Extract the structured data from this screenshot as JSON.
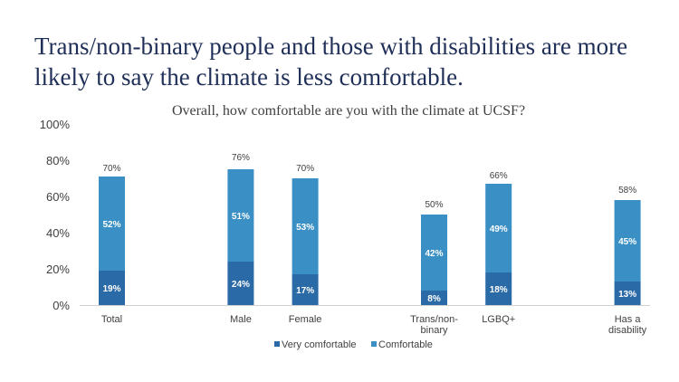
{
  "page": {
    "headline_line1": "Trans/non-binary people and those with disabilities are more",
    "headline_line2": "likely to say the climate is less comfortable."
  },
  "chart_data": {
    "type": "bar",
    "stacked": true,
    "title": "Overall, how comfortable are you with the climate at UCSF?",
    "xlabel": "",
    "ylabel": "",
    "ylim": [
      0,
      100
    ],
    "yticks": [
      "0%",
      "20%",
      "40%",
      "60%",
      "80%",
      "100%"
    ],
    "ytick_values": [
      0,
      20,
      40,
      60,
      80,
      100
    ],
    "grid": false,
    "legend_position": "bottom",
    "categories": [
      {
        "label": [
          "Total"
        ],
        "slot": 0
      },
      {
        "label": [
          "Male"
        ],
        "slot": 2
      },
      {
        "label": [
          "Female"
        ],
        "slot": 3
      },
      {
        "label": [
          "Trans/non-",
          "binary"
        ],
        "slot": 5
      },
      {
        "label": [
          "LGBQ+"
        ],
        "slot": 6
      },
      {
        "label": [
          "Has a",
          "disability"
        ],
        "slot": 8
      }
    ],
    "series": [
      {
        "name": "Very comfortable",
        "color": "#2a6aa6",
        "values": [
          19,
          24,
          17,
          8,
          18,
          13
        ],
        "labels": [
          "19%",
          "24%",
          "17%",
          "8%",
          "18%",
          "13%"
        ]
      },
      {
        "name": "Comfortable",
        "color": "#3a8fc4",
        "values": [
          52,
          51,
          53,
          42,
          49,
          45
        ],
        "labels": [
          "52%",
          "51%",
          "53%",
          "42%",
          "49%",
          "45%"
        ]
      }
    ],
    "totals": [
      70,
      76,
      70,
      50,
      66,
      58
    ],
    "total_labels": [
      "70%",
      "76%",
      "70%",
      "50%",
      "66%",
      "58%"
    ]
  }
}
